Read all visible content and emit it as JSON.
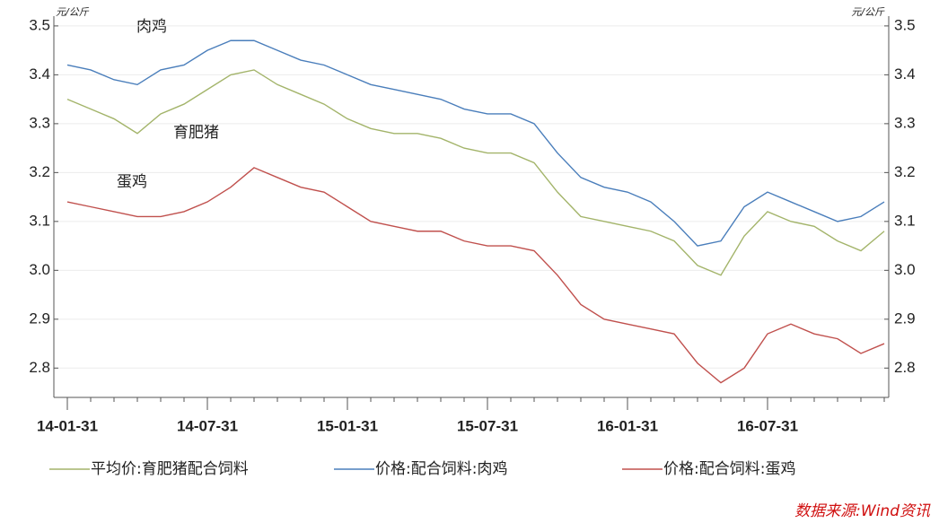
{
  "chart_data": {
    "type": "line",
    "y_unit": "元/公斤",
    "y2_unit": "元/公斤",
    "annotations": [
      "肉鸡",
      "育肥猪",
      "蛋鸡"
    ],
    "source": "数据来源:Wind资讯",
    "categories": [
      "14-01-31",
      null,
      null,
      null,
      null,
      null,
      "14-07-31",
      null,
      null,
      null,
      null,
      null,
      "15-01-31",
      null,
      null,
      null,
      null,
      null,
      "15-07-31",
      null,
      null,
      null,
      null,
      null,
      "16-01-31",
      null,
      null,
      null,
      null,
      null,
      "16-07-31",
      null,
      null,
      null,
      null,
      null
    ],
    "series": [
      {
        "name": "平均价:育肥猪配合饲料",
        "color": "#a3b46a",
        "values": [
          3.35,
          3.33,
          3.31,
          3.28,
          3.32,
          3.34,
          3.37,
          3.4,
          3.41,
          3.38,
          3.36,
          3.34,
          3.31,
          3.29,
          3.28,
          3.28,
          3.27,
          3.25,
          3.24,
          3.24,
          3.22,
          3.16,
          3.11,
          3.1,
          3.09,
          3.08,
          3.06,
          3.01,
          2.99,
          3.07,
          3.12,
          3.1,
          3.09,
          3.06,
          3.04,
          3.08
        ]
      },
      {
        "name": "价格:配合饲料:肉鸡",
        "color": "#4a7ebb",
        "values": [
          3.42,
          3.41,
          3.39,
          3.38,
          3.41,
          3.42,
          3.45,
          3.47,
          3.47,
          3.45,
          3.43,
          3.42,
          3.4,
          3.38,
          3.37,
          3.36,
          3.35,
          3.33,
          3.32,
          3.32,
          3.3,
          3.24,
          3.19,
          3.17,
          3.16,
          3.14,
          3.1,
          3.05,
          3.06,
          3.13,
          3.16,
          3.14,
          3.12,
          3.1,
          3.11,
          3.14
        ]
      },
      {
        "name": "价格:配合饲料:蛋鸡",
        "color": "#c0504d",
        "values": [
          3.14,
          3.13,
          3.12,
          3.11,
          3.11,
          3.12,
          3.14,
          3.17,
          3.21,
          3.19,
          3.17,
          3.16,
          3.13,
          3.1,
          3.09,
          3.08,
          3.08,
          3.06,
          3.05,
          3.05,
          3.04,
          2.99,
          2.93,
          2.9,
          2.89,
          2.88,
          2.87,
          2.81,
          2.77,
          2.8,
          2.87,
          2.89,
          2.87,
          2.86,
          2.83,
          2.85
        ]
      }
    ],
    "ylim": [
      2.74,
      3.52
    ],
    "yticks": [
      2.8,
      2.9,
      {
        "value": 3,
        "label": "3.0"
      },
      3.1,
      3.2,
      3.3,
      3.4,
      3.5
    ],
    "y2lim": [
      2.74,
      3.52
    ],
    "y2ticks": [
      2.8,
      2.9,
      {
        "value": 3,
        "label": "3.0"
      },
      3.1,
      3.2,
      3.3,
      3.4,
      3.5
    ],
    "grid": true
  }
}
